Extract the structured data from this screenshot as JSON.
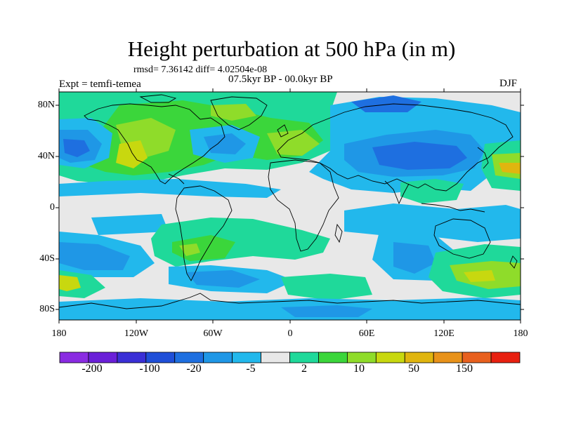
{
  "title": "Height perturbation at 500 hPa (in m)",
  "stats_text": "rmsd= 7.36142 diff= 4.02504e-08",
  "period": "07.5kyr BP - 00.0kyr BP",
  "experiment": "Expt = temfi-temea",
  "season": "DJF",
  "lat_ticks": [
    "80N",
    "40N",
    "0",
    "40S",
    "80S"
  ],
  "lon_ticks": [
    "180",
    "120W",
    "60W",
    "0",
    "60E",
    "120E",
    "180"
  ],
  "colorbar": {
    "colors": [
      "#8a2be2",
      "#6a1fd8",
      "#3a2fd6",
      "#1f4fd8",
      "#1e6fe0",
      "#1f97e6",
      "#22b8ec",
      "#e8e8e8",
      "#1fd99a",
      "#3bd63b",
      "#8fdc2a",
      "#c8d80f",
      "#e0b50f",
      "#e8921a",
      "#e8601e",
      "#e82010"
    ],
    "labels": [
      "-200",
      "-100",
      "-20",
      "-5",
      "2",
      "10",
      "50",
      "150"
    ]
  },
  "map_colors": {
    "ocean_bg": "#e8e8e8",
    "coast": "#000000"
  }
}
